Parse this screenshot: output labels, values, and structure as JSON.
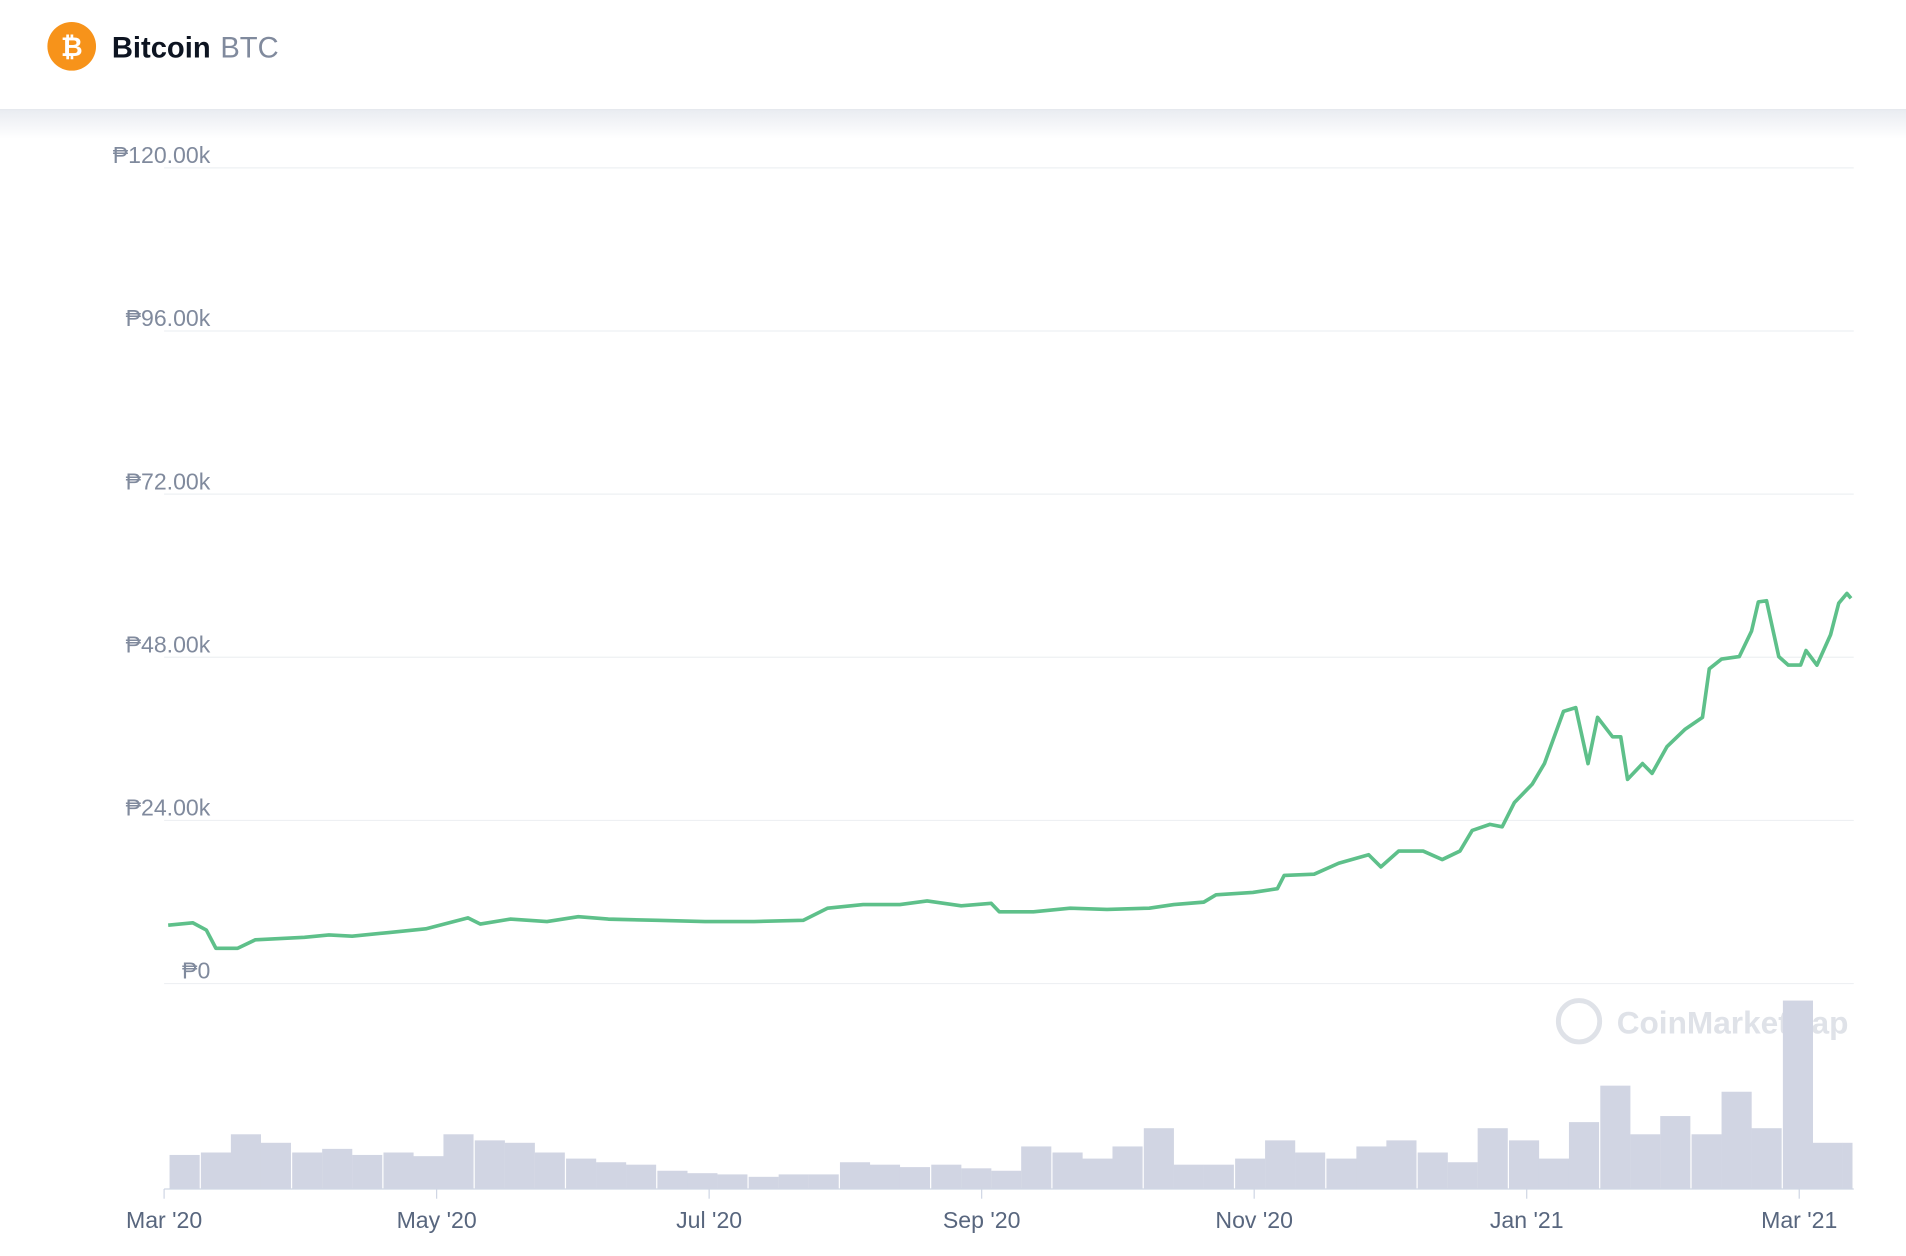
{
  "header": {
    "icon": "₿",
    "name": "Bitcoin",
    "symbol": "BTC"
  },
  "chart_data": {
    "type": "line",
    "watermark": "CoinMarketCap",
    "x": [
      0.03,
      0.21,
      0.31,
      0.38,
      0.54,
      0.67,
      0.85,
      1.03,
      1.21,
      1.38,
      1.65,
      1.92,
      2.23,
      2.32,
      2.54,
      2.81,
      3.04,
      3.26,
      3.62,
      3.97,
      4.33,
      4.69,
      4.87,
      5.13,
      5.4,
      5.6,
      5.85,
      6.07,
      6.13,
      6.38,
      6.65,
      6.92,
      7.23,
      7.41,
      7.63,
      7.72,
      7.99,
      8.17,
      8.22,
      8.44,
      8.62,
      8.84,
      8.93,
      9.06,
      9.24,
      9.38,
      9.51,
      9.6,
      9.73,
      9.82,
      9.91,
      10.04,
      10.13,
      10.27,
      10.36,
      10.45,
      10.52,
      10.63,
      10.69,
      10.74,
      10.85,
      10.92,
      11.03,
      11.16,
      11.29,
      11.34,
      11.43,
      11.56,
      11.65,
      11.7,
      11.76,
      11.85,
      11.92,
      12.01,
      12.05,
      12.13,
      12.23,
      12.29,
      12.35,
      12.38
    ],
    "series": [
      {
        "color": "#5ec08a",
        "values": [
          8580,
          8940,
          7870,
          5190,
          5190,
          6440,
          6620,
          6800,
          7150,
          6970,
          7510,
          8050,
          9660,
          8760,
          9480,
          9120,
          9830,
          9480,
          9300,
          9120,
          9120,
          9300,
          11090,
          11620,
          11620,
          12160,
          11440,
          11800,
          10550,
          10550,
          11090,
          10910,
          11090,
          11620,
          11980,
          13050,
          13410,
          13950,
          15910,
          16090,
          17700,
          18950,
          17160,
          19490,
          19490,
          18240,
          19490,
          22530,
          23420,
          23060,
          26640,
          29320,
          32360,
          40050,
          40590,
          32360,
          39160,
          36300,
          36300,
          30040,
          32360,
          30930,
          34870,
          37370,
          39160,
          46310,
          47740,
          48100,
          51850,
          56140,
          56320,
          48100,
          46850,
          46850,
          48990,
          46850,
          51320,
          55960,
          57390,
          56680
        ]
      }
    ],
    "volume": {
      "color": "#d1d5e3",
      "x": [
        0.04,
        0.27,
        0.49,
        0.71,
        0.94,
        1.16,
        1.38,
        1.61,
        1.83,
        2.05,
        2.28,
        2.5,
        2.72,
        2.95,
        3.17,
        3.39,
        3.62,
        3.84,
        4.06,
        4.29,
        4.51,
        4.73,
        4.96,
        5.18,
        5.4,
        5.63,
        5.85,
        6.07,
        6.29,
        6.52,
        6.74,
        6.96,
        7.19,
        7.41,
        7.63,
        7.86,
        8.08,
        8.3,
        8.53,
        8.75,
        8.97,
        9.2,
        9.42,
        9.64,
        9.87,
        10.09,
        10.31,
        10.54,
        10.76,
        10.98,
        11.21,
        11.43,
        11.65,
        11.88,
        12.1,
        12.32
      ],
      "values": [
        28,
        30,
        45,
        38,
        30,
        33,
        28,
        30,
        27,
        45,
        40,
        38,
        30,
        25,
        22,
        20,
        15,
        13,
        12,
        10,
        12,
        12,
        22,
        20,
        18,
        20,
        17,
        15,
        35,
        30,
        25,
        35,
        50,
        20,
        20,
        25,
        40,
        30,
        25,
        35,
        40,
        30,
        22,
        50,
        40,
        25,
        55,
        85,
        45,
        60,
        45,
        80,
        50,
        155,
        38,
        38
      ]
    },
    "xlim": [
      0,
      12.4
    ],
    "xticks": [
      {
        "value": 0,
        "label": "Mar '20"
      },
      {
        "value": 2,
        "label": "May '20"
      },
      {
        "value": 4,
        "label": "Jul '20"
      },
      {
        "value": 6,
        "label": "Sep '20"
      },
      {
        "value": 8,
        "label": "Nov '20"
      },
      {
        "value": 10,
        "label": "Jan '21"
      },
      {
        "value": 12,
        "label": "Mar '21"
      }
    ],
    "ylim": [
      0,
      120000
    ],
    "yticks": [
      {
        "value": 0,
        "label": "₱0"
      },
      {
        "value": 24000,
        "label": "₱24.00k"
      },
      {
        "value": 48000,
        "label": "₱48.00k"
      },
      {
        "value": 72000,
        "label": "₱72.00k"
      },
      {
        "value": 96000,
        "label": "₱96.00k"
      },
      {
        "value": 120000,
        "label": "₱120.00k"
      }
    ],
    "grid": true
  }
}
